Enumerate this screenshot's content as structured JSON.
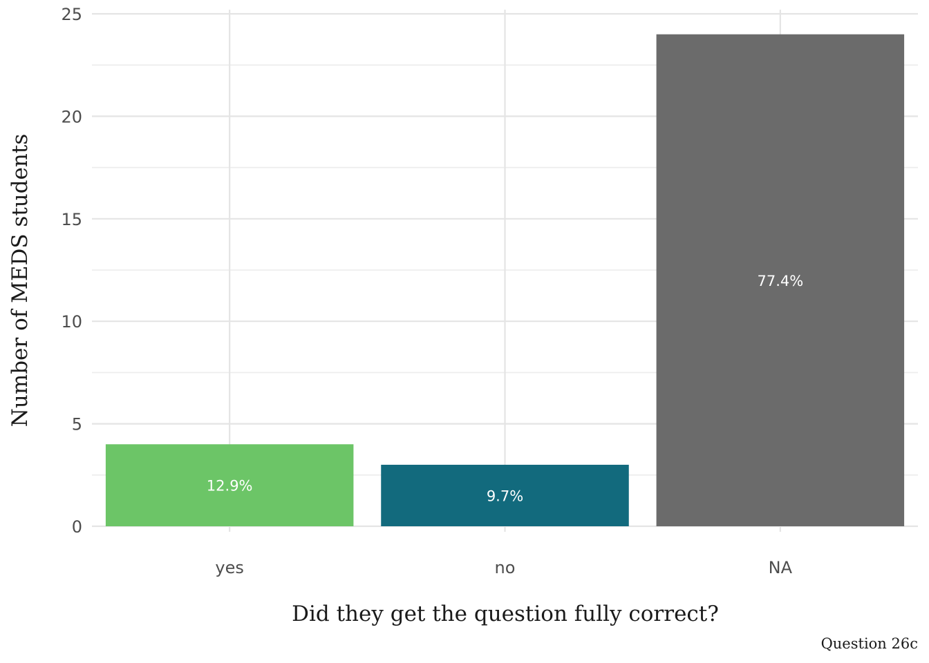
{
  "chart_data": {
    "type": "bar",
    "categories": [
      "yes",
      "no",
      "NA"
    ],
    "values": [
      4,
      3,
      24
    ],
    "bar_labels": [
      "12.9%",
      "9.7%",
      "77.4%"
    ],
    "colors": [
      "#6cc567",
      "#126a7d",
      "#6b6b6b"
    ],
    "xlabel": "Did they get the question fully correct?",
    "ylabel": "Number of MEDS students",
    "ylim": [
      0,
      25
    ],
    "yticks": [
      0,
      5,
      10,
      15,
      20,
      25
    ],
    "grid": true,
    "legend": "none",
    "caption": "Question 26c"
  }
}
